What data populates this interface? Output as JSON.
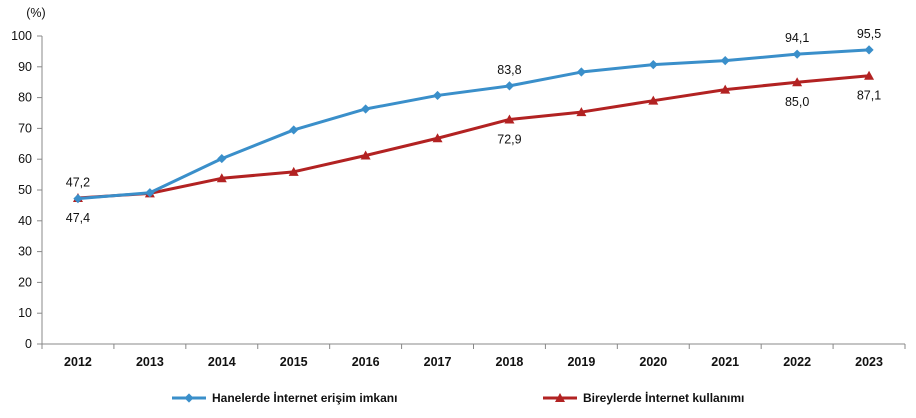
{
  "chart_data": {
    "type": "line",
    "title": "",
    "xlabel": "",
    "ylabel": "(%)",
    "categories": [
      "2012",
      "2013",
      "2014",
      "2015",
      "2016",
      "2017",
      "2018",
      "2019",
      "2020",
      "2021",
      "2022",
      "2023"
    ],
    "ylim": [
      0,
      100
    ],
    "yticks": [
      0,
      10,
      20,
      30,
      40,
      50,
      60,
      70,
      80,
      90,
      100
    ],
    "grid": false,
    "legend_position": "bottom",
    "series": [
      {
        "name": "Hanelerde İnternet erişim imkanı",
        "color": "#3A8FCA",
        "marker": "diamond",
        "values": [
          47.2,
          49.1,
          60.2,
          69.5,
          76.3,
          80.7,
          83.8,
          88.3,
          90.7,
          92.0,
          94.1,
          95.5
        ]
      },
      {
        "name": "Bireylerde İnternet kullanımı",
        "color": "#B22222",
        "marker": "triangle",
        "values": [
          47.4,
          48.9,
          53.8,
          55.9,
          61.2,
          66.8,
          72.9,
          75.3,
          79.0,
          82.6,
          85.0,
          87.1
        ]
      }
    ],
    "data_labels": [
      {
        "series": 0,
        "index": 0,
        "text": "47,2",
        "position": "above"
      },
      {
        "series": 1,
        "index": 0,
        "text": "47,4",
        "position": "below"
      },
      {
        "series": 0,
        "index": 6,
        "text": "83,8",
        "position": "above"
      },
      {
        "series": 1,
        "index": 6,
        "text": "72,9",
        "position": "below"
      },
      {
        "series": 0,
        "index": 10,
        "text": "94,1",
        "position": "above"
      },
      {
        "series": 1,
        "index": 10,
        "text": "85,0",
        "position": "below"
      },
      {
        "series": 0,
        "index": 11,
        "text": "95,5",
        "position": "above"
      },
      {
        "series": 1,
        "index": 11,
        "text": "87,1",
        "position": "below"
      }
    ]
  }
}
